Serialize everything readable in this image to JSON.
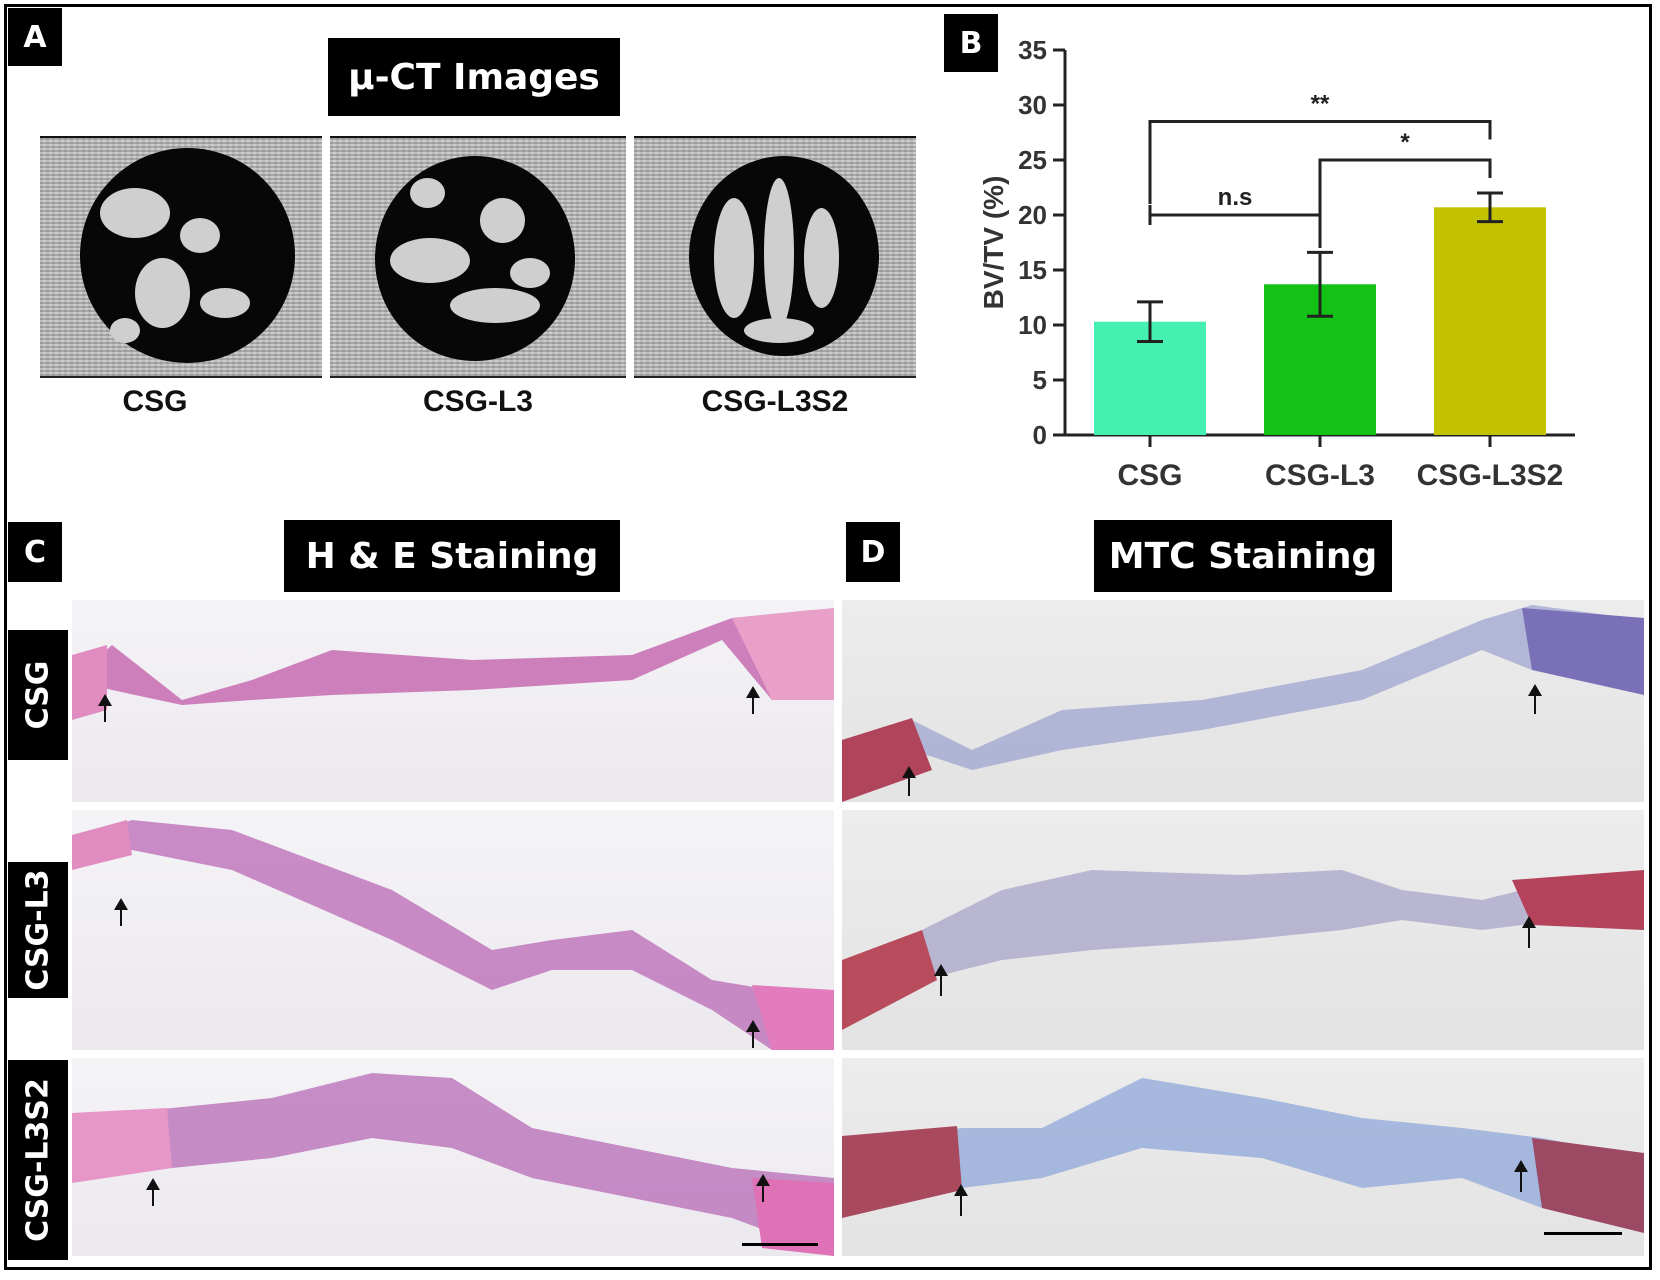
{
  "panels": {
    "a": {
      "letter": "A",
      "title": "μ-CT Images",
      "groups": [
        "CSG",
        "CSG-L3",
        "CSG-L3S2"
      ]
    },
    "b": {
      "letter": "B"
    },
    "c": {
      "letter": "C",
      "title": "H & E Staining"
    },
    "d": {
      "letter": "D",
      "title": "MTC Staining"
    },
    "row_labels": [
      "CSG",
      "CSG-L3",
      "CSG-L3S2"
    ]
  },
  "chart_data": {
    "type": "bar",
    "categories": [
      "CSG",
      "CSG-L3",
      "CSG-L3S2"
    ],
    "values": [
      10.3,
      13.7,
      20.7
    ],
    "error": [
      1.8,
      2.9,
      1.3
    ],
    "colors": [
      "#45f0b0",
      "#12c214",
      "#c2c200"
    ],
    "ylabel": "BV/TV (%)",
    "xlabel": "",
    "ylim": [
      0,
      35
    ],
    "yticks": [
      0,
      5,
      10,
      15,
      20,
      25,
      30,
      35
    ],
    "grid": false,
    "significance": [
      {
        "from": "CSG",
        "to": "CSG-L3",
        "label": "n.s"
      },
      {
        "from": "CSG-L3",
        "to": "CSG-L3S2",
        "label": "*"
      },
      {
        "from": "CSG",
        "to": "CSG-L3S2",
        "label": "**"
      }
    ]
  },
  "colors": {
    "he_stain": "#c2459b",
    "mtc_red": "#b23a4e",
    "mtc_blue": "#4a8fd0"
  }
}
